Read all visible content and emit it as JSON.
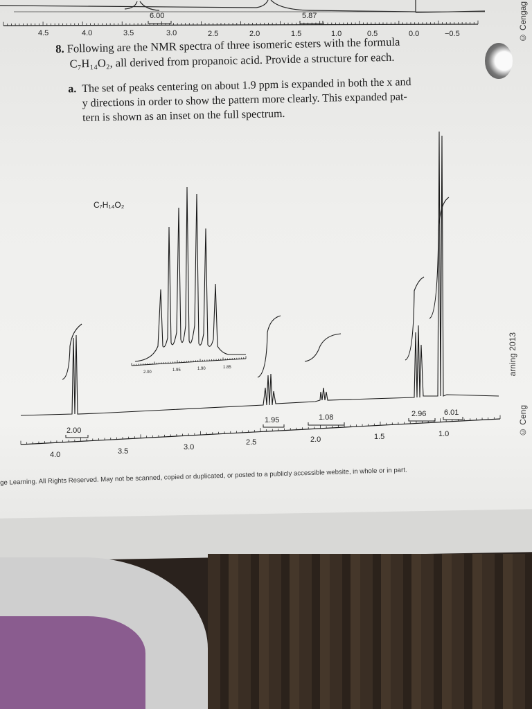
{
  "top_spectrum": {
    "integrals": [
      "6.00",
      "5.87"
    ],
    "axis_ticks": [
      "4.5",
      "4.0",
      "3.5",
      "3.0",
      "2.5",
      "2.0",
      "1.5",
      "1.0",
      "0.5",
      "0.0",
      "−0.5"
    ]
  },
  "publisher_mark_top": "© Cengag",
  "question": {
    "number": "8.",
    "line1": "Following are the NMR spectra of three isomeric esters with the formula",
    "formula_html": "C₇H₁₄O₂,",
    "line2_rest": " all derived from propanoic acid. Provide a structure for each.",
    "part_label": "a.",
    "part_line1": "The set of peaks centering on about 1.9 ppm is expanded in both the x and",
    "part_line2": "y directions in order to show the pattern more clearly. This expanded pat-",
    "part_line3": "tern is shown as an inset on the full spectrum."
  },
  "spectrum": {
    "formula_label": "C₇H₁₄O₂",
    "inset_ticks": [
      "2.00",
      "1.95",
      "1.90",
      "1.85"
    ],
    "integrals": [
      "2.00",
      "1.95",
      "1.08",
      "2.96",
      "6.01"
    ],
    "axis_ticks": [
      "4.0",
      "3.5",
      "3.0",
      "2.5",
      "2.0",
      "1.5",
      "1.0"
    ]
  },
  "side_marks": [
    "arning 2013",
    "© Ceng"
  ],
  "copyright": "ge Learning. All Rights Reserved. May not be scanned, copied or duplicated, or posted to a publicly accessible website, in whole or in part."
}
